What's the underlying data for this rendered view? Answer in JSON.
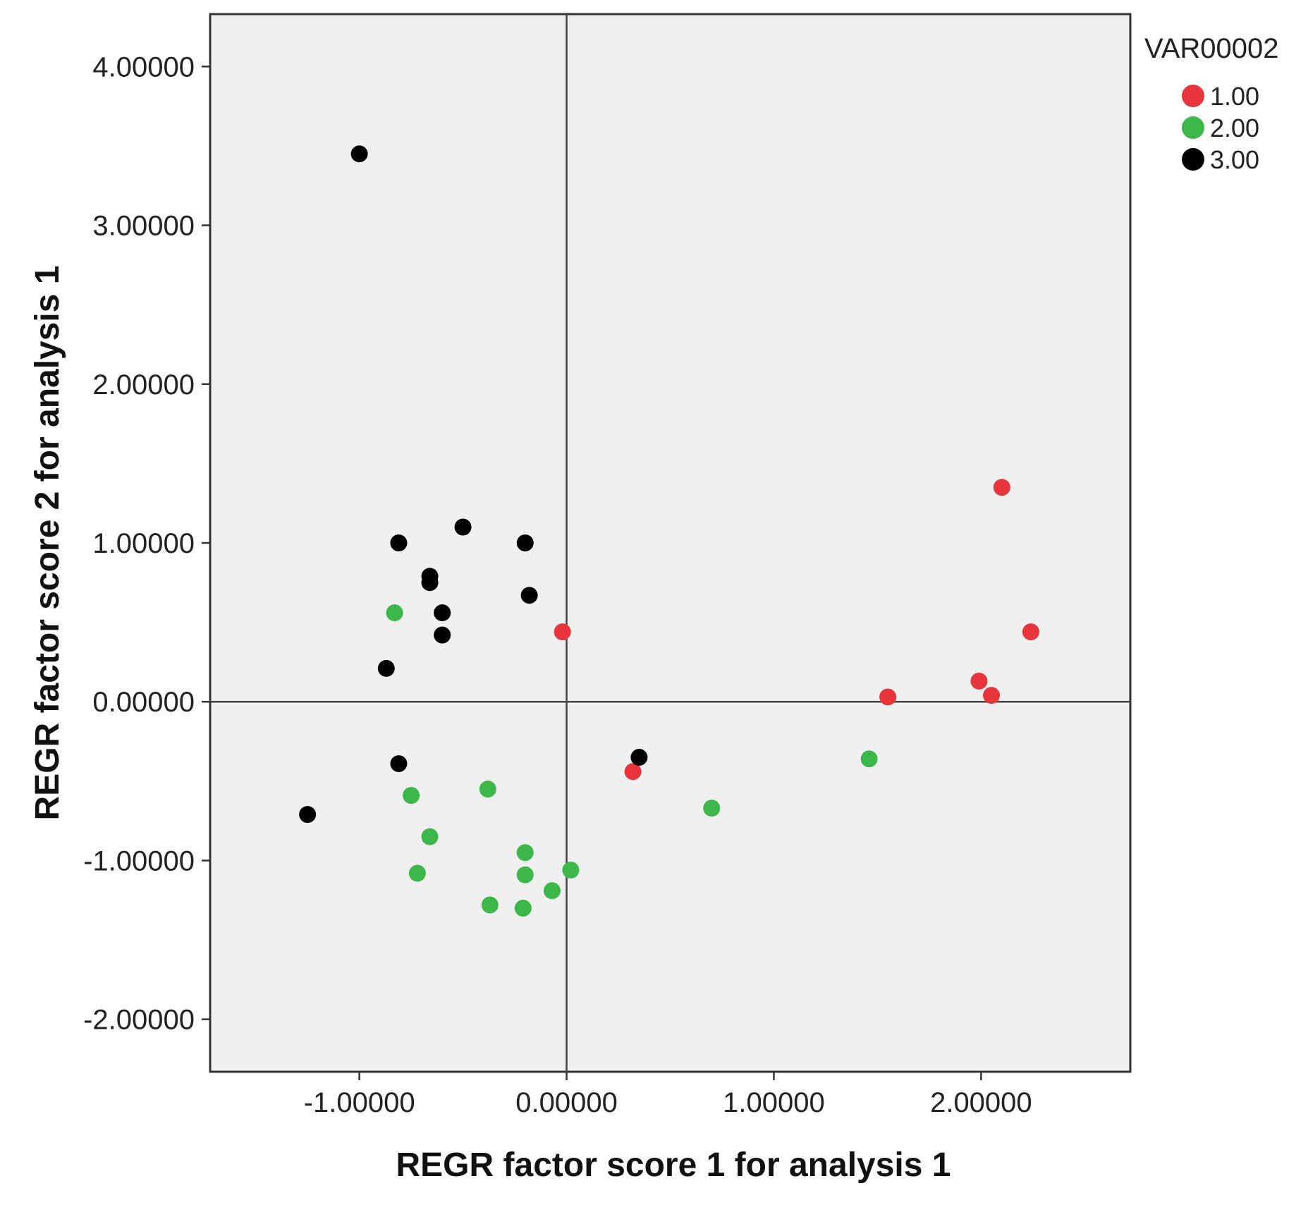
{
  "chart_data": {
    "type": "scatter",
    "xlabel": "REGR factor score   1 for analysis 1",
    "ylabel": "REGR factor score   2 for analysis 1",
    "xlim": [
      -1.72,
      2.72
    ],
    "ylim": [
      -2.33,
      4.33
    ],
    "x_ticks": [
      -1,
      0,
      1,
      2
    ],
    "x_tick_labels": [
      "-1.00000",
      "0.00000",
      "1.00000",
      "2.00000"
    ],
    "y_ticks": [
      -2,
      -1,
      0,
      1,
      2,
      3,
      4
    ],
    "y_tick_labels": [
      "-2.00000",
      "-1.00000",
      "0.00000",
      "1.00000",
      "2.00000",
      "3.00000",
      "4.00000"
    ],
    "reference_lines": {
      "x": 0,
      "y": 0
    },
    "grid": false,
    "legend": {
      "title": "VAR00002",
      "position": "top-right"
    },
    "series": [
      {
        "name": "1.00",
        "color": "#e8343a",
        "points": [
          [
            2.1,
            1.35
          ],
          [
            2.24,
            0.44
          ],
          [
            1.99,
            0.13
          ],
          [
            2.05,
            0.04
          ],
          [
            1.55,
            0.03
          ],
          [
            -0.02,
            0.44
          ],
          [
            0.32,
            -0.44
          ]
        ]
      },
      {
        "name": "2.00",
        "color": "#3cb84a",
        "points": [
          [
            -0.83,
            0.56
          ],
          [
            1.46,
            -0.36
          ],
          [
            0.7,
            -0.67
          ],
          [
            -0.38,
            -0.55
          ],
          [
            -0.75,
            -0.59
          ],
          [
            -0.66,
            -0.85
          ],
          [
            -0.2,
            -0.95
          ],
          [
            0.02,
            -1.06
          ],
          [
            -0.2,
            -1.09
          ],
          [
            -0.72,
            -1.08
          ],
          [
            -0.07,
            -1.19
          ],
          [
            -0.37,
            -1.28
          ],
          [
            -0.21,
            -1.3
          ]
        ]
      },
      {
        "name": "3.00",
        "color": "#000000",
        "points": [
          [
            -1.0,
            3.45
          ],
          [
            -0.5,
            1.1
          ],
          [
            -0.81,
            1.0
          ],
          [
            -0.2,
            1.0
          ],
          [
            -0.66,
            0.79
          ],
          [
            -0.66,
            0.75
          ],
          [
            -0.18,
            0.67
          ],
          [
            -0.6,
            0.56
          ],
          [
            -0.6,
            0.42
          ],
          [
            -0.87,
            0.21
          ],
          [
            -0.81,
            -0.39
          ],
          [
            0.35,
            -0.35
          ],
          [
            -1.25,
            -0.71
          ]
        ]
      }
    ]
  }
}
